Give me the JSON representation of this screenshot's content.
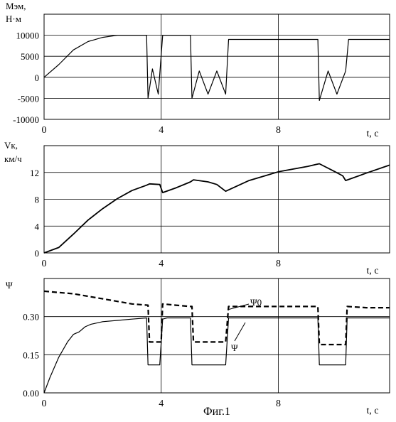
{
  "caption": "Фиг.1",
  "chart_data": [
    {
      "type": "line",
      "ylabel": "Мэм,\nН·м",
      "xlabel": "t, с",
      "xlim": [
        0,
        11.8
      ],
      "ylim": [
        -10000,
        15000
      ],
      "xticks": [
        "0",
        "4",
        "8"
      ],
      "yticks": [
        "10000",
        "5000",
        "0",
        "-5000",
        "-10000"
      ],
      "grid": true,
      "series": [
        {
          "x": [
            0,
            0.5,
            1.0,
            1.5,
            2.0,
            2.5,
            3.0,
            3.4,
            3.5,
            3.55,
            3.7,
            3.9,
            4.05,
            4.5,
            5.0,
            5.05,
            5.3,
            5.6,
            5.9,
            6.2,
            6.3,
            7.0,
            8.0,
            9.0,
            9.35,
            9.4,
            9.7,
            10.0,
            10.3,
            10.4,
            11.0,
            11.8
          ],
          "y": [
            0,
            3000,
            6500,
            8500,
            9500,
            10000,
            10000,
            10000,
            10000,
            -5000,
            2000,
            -4000,
            10000,
            10000,
            10000,
            -5000,
            1500,
            -4000,
            1500,
            -4000,
            9000,
            9000,
            9000,
            9000,
            9000,
            -5500,
            1500,
            -4000,
            1500,
            9000,
            9000,
            9000
          ]
        }
      ]
    },
    {
      "type": "line",
      "ylabel": "Vк,\nкм/ч",
      "xlabel": "t, с",
      "xlim": [
        0,
        11.8
      ],
      "ylim": [
        0,
        16
      ],
      "xticks": [
        "0",
        "4",
        "8"
      ],
      "yticks": [
        "12",
        "8",
        "4",
        "0"
      ],
      "grid": true,
      "series": [
        {
          "x": [
            0,
            0.5,
            1.0,
            1.5,
            2.0,
            2.5,
            3.0,
            3.5,
            3.6,
            3.95,
            4.05,
            4.5,
            5.0,
            5.1,
            5.6,
            5.9,
            6.2,
            7.0,
            8.0,
            9.0,
            9.3,
            9.4,
            9.9,
            10.2,
            10.3,
            11.0,
            11.8
          ],
          "y": [
            0,
            0.8,
            2.8,
            4.9,
            6.6,
            8.1,
            9.3,
            10.1,
            10.3,
            10.2,
            9.0,
            9.7,
            10.6,
            10.9,
            10.6,
            10.2,
            9.2,
            10.8,
            12.1,
            12.9,
            13.2,
            13.3,
            12.2,
            11.5,
            10.8,
            11.9,
            13.1
          ]
        }
      ]
    },
    {
      "type": "line",
      "ylabel": "Ψ",
      "xlabel": "t, с",
      "xlim": [
        0,
        11.8
      ],
      "ylim": [
        0,
        0.45
      ],
      "xticks": [
        "0",
        "4",
        "8"
      ],
      "yticks": [
        "0.30",
        "0.15",
        "0.00"
      ],
      "grid": true,
      "series": [
        {
          "name": "Ψ0",
          "style": "dashed",
          "x": [
            0,
            1.0,
            2.0,
            3.0,
            3.55,
            3.6,
            3.95,
            4.0,
            4.05,
            4.5,
            5.0,
            5.05,
            5.1,
            6.2,
            6.3,
            7.0,
            8.0,
            9.0,
            9.35,
            9.4,
            10.3,
            10.35,
            11.0,
            11.8
          ],
          "y": [
            0.4,
            0.39,
            0.37,
            0.35,
            0.345,
            0.2,
            0.2,
            0.2,
            0.35,
            0.345,
            0.34,
            0.34,
            0.2,
            0.2,
            0.34,
            0.34,
            0.34,
            0.34,
            0.34,
            0.19,
            0.19,
            0.34,
            0.335,
            0.335
          ]
        },
        {
          "name": "Ψ",
          "style": "solid",
          "x": [
            0,
            0.2,
            0.5,
            0.8,
            1.0,
            1.2,
            1.4,
            1.6,
            2.0,
            2.5,
            3.0,
            3.5,
            3.55,
            3.95,
            4.05,
            4.2,
            5.0,
            5.05,
            6.2,
            6.3,
            7.0,
            8.0,
            9.0,
            9.35,
            9.4,
            10.3,
            10.35,
            11.0,
            11.8
          ],
          "y": [
            0,
            0.06,
            0.14,
            0.2,
            0.23,
            0.24,
            0.26,
            0.27,
            0.28,
            0.285,
            0.29,
            0.295,
            0.11,
            0.11,
            0.29,
            0.295,
            0.295,
            0.11,
            0.11,
            0.295,
            0.295,
            0.295,
            0.295,
            0.295,
            0.11,
            0.11,
            0.295,
            0.295,
            0.295
          ]
        }
      ],
      "annotations": [
        "Ψ0",
        "Ψ"
      ]
    }
  ]
}
